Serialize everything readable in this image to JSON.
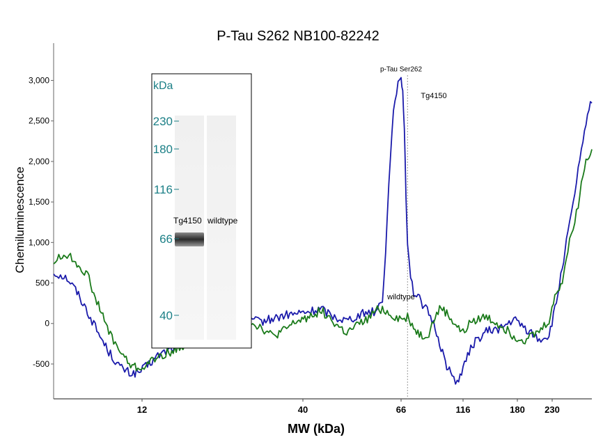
{
  "chart_data": {
    "type": "line",
    "title": "P-Tau S262  NB100-82242",
    "xlabel": "MW (kDa)",
    "ylabel": "Chemiluminescence",
    "x_ticks": [
      "12",
      "40",
      "66",
      "116",
      "180",
      "230"
    ],
    "y_ticks": [
      3000,
      2500,
      2000,
      1500,
      1000,
      500,
      0,
      -500
    ],
    "y_tick_labels": [
      "3,000",
      "2,500",
      "2,000",
      "1,500",
      "1,000",
      "500",
      "0",
      "-500"
    ],
    "ylim": [
      -930,
      3460
    ],
    "x_log_scale": true,
    "grid": false,
    "series": [
      {
        "name": "Tg4150",
        "color": "#1a1aaa",
        "points": [
          [
            7,
            620
          ],
          [
            7.3,
            600
          ],
          [
            7.6,
            560
          ],
          [
            8,
            420
          ],
          [
            8.6,
            150
          ],
          [
            9.2,
            -120
          ],
          [
            9.8,
            -350
          ],
          [
            10.5,
            -540
          ],
          [
            11.2,
            -620
          ],
          [
            11.8,
            -600
          ],
          [
            12.5,
            -520
          ],
          [
            13.5,
            -400
          ],
          [
            14.5,
            -330
          ],
          [
            15.5,
            -280
          ],
          [
            16.5,
            -250
          ],
          [
            17.5,
            -160
          ],
          [
            19,
            -40
          ],
          [
            21,
            30
          ],
          [
            23,
            0
          ],
          [
            26,
            60
          ],
          [
            29,
            20
          ],
          [
            32,
            60
          ],
          [
            35,
            100
          ],
          [
            38,
            120
          ],
          [
            41,
            140
          ],
          [
            44,
            180
          ],
          [
            47,
            80
          ],
          [
            50,
            40
          ],
          [
            53,
            100
          ],
          [
            56,
            150
          ],
          [
            58,
            150
          ],
          [
            60,
            300
          ],
          [
            61,
            900
          ],
          [
            62,
            1700
          ],
          [
            63,
            2400
          ],
          [
            64,
            2800
          ],
          [
            65,
            2950
          ],
          [
            66,
            2980
          ],
          [
            67,
            2900
          ],
          [
            68,
            2400
          ],
          [
            69,
            1600
          ],
          [
            70,
            1000
          ],
          [
            72,
            600
          ],
          [
            74,
            380
          ],
          [
            78,
            300
          ],
          [
            85,
            120
          ],
          [
            90,
            -50
          ],
          [
            95,
            -300
          ],
          [
            100,
            -520
          ],
          [
            105,
            -650
          ],
          [
            110,
            -720
          ],
          [
            116,
            -560
          ],
          [
            125,
            -260
          ],
          [
            140,
            -100
          ],
          [
            160,
            -50
          ],
          [
            175,
            50
          ],
          [
            190,
            -60
          ],
          [
            210,
            -200
          ],
          [
            225,
            -150
          ],
          [
            240,
            250
          ],
          [
            255,
            700
          ],
          [
            270,
            1100
          ],
          [
            285,
            1450
          ],
          [
            300,
            1900
          ],
          [
            315,
            2200
          ],
          [
            325,
            2500
          ],
          [
            335,
            2650
          ],
          [
            345,
            2720
          ]
        ]
      },
      {
        "name": "wildtype",
        "color": "#1a7a1a",
        "points": [
          [
            7,
            760
          ],
          [
            7.3,
            820
          ],
          [
            7.6,
            850
          ],
          [
            8,
            760
          ],
          [
            8.6,
            600
          ],
          [
            9.2,
            220
          ],
          [
            9.8,
            -100
          ],
          [
            10.5,
            -350
          ],
          [
            11.2,
            -520
          ],
          [
            11.8,
            -560
          ],
          [
            12.5,
            -500
          ],
          [
            13.5,
            -420
          ],
          [
            14.5,
            -360
          ],
          [
            15.5,
            -330
          ],
          [
            16.5,
            -260
          ],
          [
            17.5,
            -200
          ],
          [
            19,
            -60
          ],
          [
            21,
            20
          ],
          [
            23,
            60
          ],
          [
            26,
            40
          ],
          [
            29,
            -40
          ],
          [
            32,
            -160
          ],
          [
            35,
            -80
          ],
          [
            38,
            20
          ],
          [
            41,
            80
          ],
          [
            44,
            160
          ],
          [
            47,
            0
          ],
          [
            50,
            -120
          ],
          [
            53,
            -20
          ],
          [
            56,
            60
          ],
          [
            58,
            160
          ],
          [
            60,
            180
          ],
          [
            62,
            120
          ],
          [
            64,
            80
          ],
          [
            66,
            60
          ],
          [
            68,
            40
          ],
          [
            70,
            80
          ],
          [
            72,
            20
          ],
          [
            75,
            -80
          ],
          [
            80,
            -160
          ],
          [
            85,
            -120
          ],
          [
            90,
            80
          ],
          [
            95,
            200
          ],
          [
            100,
            120
          ],
          [
            110,
            -40
          ],
          [
            116,
            -120
          ],
          [
            125,
            40
          ],
          [
            140,
            80
          ],
          [
            160,
            -40
          ],
          [
            175,
            -160
          ],
          [
            190,
            -200
          ],
          [
            210,
            -100
          ],
          [
            225,
            40
          ],
          [
            240,
            380
          ],
          [
            255,
            520
          ],
          [
            270,
            900
          ],
          [
            285,
            1200
          ],
          [
            300,
            1450
          ],
          [
            315,
            1850
          ],
          [
            325,
            2000
          ],
          [
            335,
            2080
          ],
          [
            345,
            2150
          ]
        ]
      }
    ],
    "annotations": [
      {
        "text": "p-Tau Ser262",
        "x": 66,
        "y": 3110
      },
      {
        "text": "Tg4150",
        "x": 79,
        "y": 2780
      },
      {
        "text": "wildtype",
        "x": 66,
        "y": 300
      }
    ],
    "reference_line_x": 70
  },
  "inset": {
    "kda_label": "kDa",
    "markers": [
      {
        "label": "230",
        "kda": 230
      },
      {
        "label": "180",
        "kda": 180
      },
      {
        "label": "116",
        "kda": 116
      },
      {
        "label": "66",
        "kda": 66
      },
      {
        "label": "40",
        "kda": 40
      }
    ],
    "lanes": [
      "Tg4150",
      "wildtype"
    ]
  }
}
